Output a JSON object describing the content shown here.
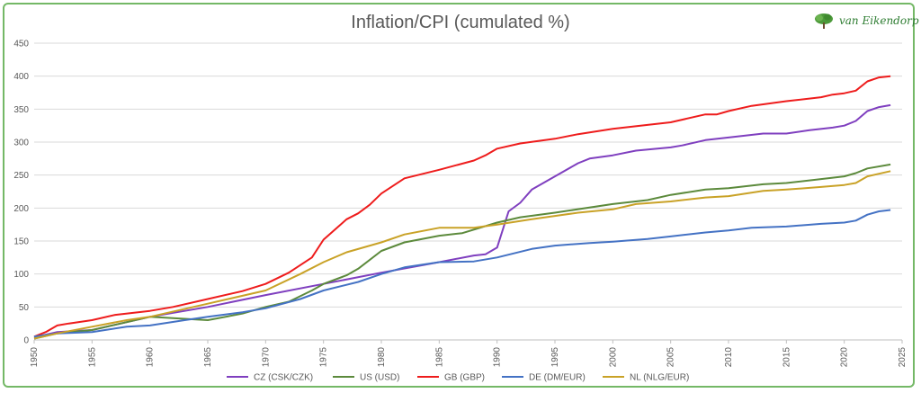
{
  "title": "Inflation/CPI (cumulated %)",
  "logo": {
    "text": "van Eikendorp",
    "icon": "tree-icon"
  },
  "chart_data": {
    "type": "line",
    "title": "Inflation/CPI (cumulated %)",
    "xlabel": "",
    "ylabel": "",
    "xlim": [
      1950,
      2025
    ],
    "ylim": [
      0,
      450
    ],
    "x_ticks": [
      1950,
      1955,
      1960,
      1965,
      1970,
      1975,
      1980,
      1985,
      1990,
      1995,
      2000,
      2005,
      2010,
      2015,
      2020,
      2025
    ],
    "y_ticks": [
      0,
      50,
      100,
      150,
      200,
      250,
      300,
      350,
      400,
      450
    ],
    "grid": "horizontal",
    "legend_position": "bottom",
    "series": [
      {
        "name": "CZ (CSK/CZK)",
        "color": "#7f3fbf",
        "points": [
          [
            1950,
            4
          ],
          [
            1952,
            12
          ],
          [
            1955,
            15
          ],
          [
            1960,
            35
          ],
          [
            1965,
            50
          ],
          [
            1970,
            68
          ],
          [
            1975,
            85
          ],
          [
            1980,
            102
          ],
          [
            1985,
            118
          ],
          [
            1988,
            128
          ],
          [
            1989,
            130
          ],
          [
            1990,
            140
          ],
          [
            1991,
            195
          ],
          [
            1992,
            208
          ],
          [
            1993,
            228
          ],
          [
            1995,
            248
          ],
          [
            1997,
            268
          ],
          [
            1998,
            275
          ],
          [
            2000,
            280
          ],
          [
            2002,
            287
          ],
          [
            2005,
            292
          ],
          [
            2006,
            295
          ],
          [
            2008,
            303
          ],
          [
            2010,
            307
          ],
          [
            2013,
            313
          ],
          [
            2015,
            313
          ],
          [
            2017,
            318
          ],
          [
            2019,
            322
          ],
          [
            2020,
            325
          ],
          [
            2021,
            332
          ],
          [
            2022,
            347
          ],
          [
            2023,
            353
          ],
          [
            2024,
            356
          ]
        ]
      },
      {
        "name": "US (USD)",
        "color": "#5c8a3c",
        "points": [
          [
            1950,
            2
          ],
          [
            1952,
            10
          ],
          [
            1955,
            15
          ],
          [
            1960,
            35
          ],
          [
            1965,
            30
          ],
          [
            1968,
            40
          ],
          [
            1970,
            50
          ],
          [
            1972,
            58
          ],
          [
            1974,
            75
          ],
          [
            1975,
            85
          ],
          [
            1977,
            98
          ],
          [
            1978,
            108
          ],
          [
            1980,
            135
          ],
          [
            1982,
            148
          ],
          [
            1985,
            158
          ],
          [
            1987,
            162
          ],
          [
            1990,
            178
          ],
          [
            1992,
            186
          ],
          [
            1995,
            193
          ],
          [
            2000,
            206
          ],
          [
            2003,
            212
          ],
          [
            2005,
            220
          ],
          [
            2008,
            228
          ],
          [
            2010,
            230
          ],
          [
            2013,
            236
          ],
          [
            2015,
            238
          ],
          [
            2018,
            244
          ],
          [
            2020,
            248
          ],
          [
            2021,
            253
          ],
          [
            2022,
            260
          ],
          [
            2024,
            266
          ]
        ]
      },
      {
        "name": "GB (GBP)",
        "color": "#ee1c1c",
        "points": [
          [
            1950,
            5
          ],
          [
            1951,
            12
          ],
          [
            1952,
            22
          ],
          [
            1953,
            25
          ],
          [
            1955,
            30
          ],
          [
            1957,
            38
          ],
          [
            1960,
            44
          ],
          [
            1962,
            50
          ],
          [
            1965,
            62
          ],
          [
            1968,
            74
          ],
          [
            1970,
            85
          ],
          [
            1972,
            102
          ],
          [
            1974,
            125
          ],
          [
            1975,
            152
          ],
          [
            1977,
            183
          ],
          [
            1978,
            192
          ],
          [
            1979,
            205
          ],
          [
            1980,
            222
          ],
          [
            1982,
            245
          ],
          [
            1985,
            258
          ],
          [
            1988,
            272
          ],
          [
            1989,
            280
          ],
          [
            1990,
            290
          ],
          [
            1992,
            298
          ],
          [
            1995,
            305
          ],
          [
            1997,
            312
          ],
          [
            2000,
            320
          ],
          [
            2003,
            326
          ],
          [
            2005,
            330
          ],
          [
            2008,
            342
          ],
          [
            2009,
            342
          ],
          [
            2010,
            347
          ],
          [
            2012,
            355
          ],
          [
            2015,
            362
          ],
          [
            2018,
            368
          ],
          [
            2019,
            372
          ],
          [
            2020,
            374
          ],
          [
            2021,
            378
          ],
          [
            2022,
            392
          ],
          [
            2023,
            398
          ],
          [
            2024,
            400
          ]
        ]
      },
      {
        "name": "DE (DM/EUR)",
        "color": "#4472c4",
        "points": [
          [
            1950,
            5
          ],
          [
            1952,
            10
          ],
          [
            1955,
            12
          ],
          [
            1958,
            20
          ],
          [
            1960,
            22
          ],
          [
            1963,
            30
          ],
          [
            1965,
            35
          ],
          [
            1968,
            42
          ],
          [
            1970,
            48
          ],
          [
            1973,
            62
          ],
          [
            1975,
            75
          ],
          [
            1978,
            88
          ],
          [
            1980,
            100
          ],
          [
            1982,
            110
          ],
          [
            1985,
            118
          ],
          [
            1988,
            119
          ],
          [
            1990,
            125
          ],
          [
            1993,
            138
          ],
          [
            1995,
            143
          ],
          [
            1998,
            147
          ],
          [
            2000,
            149
          ],
          [
            2003,
            153
          ],
          [
            2005,
            157
          ],
          [
            2008,
            163
          ],
          [
            2010,
            166
          ],
          [
            2012,
            170
          ],
          [
            2015,
            172
          ],
          [
            2018,
            176
          ],
          [
            2020,
            178
          ],
          [
            2021,
            181
          ],
          [
            2022,
            190
          ],
          [
            2023,
            195
          ],
          [
            2024,
            197
          ]
        ]
      },
      {
        "name": "NL (NLG/EUR)",
        "color": "#c9a227",
        "points": [
          [
            1950,
            2
          ],
          [
            1952,
            10
          ],
          [
            1955,
            20
          ],
          [
            1958,
            30
          ],
          [
            1960,
            35
          ],
          [
            1965,
            55
          ],
          [
            1970,
            75
          ],
          [
            1973,
            100
          ],
          [
            1975,
            118
          ],
          [
            1977,
            133
          ],
          [
            1980,
            148
          ],
          [
            1982,
            160
          ],
          [
            1985,
            170
          ],
          [
            1988,
            170
          ],
          [
            1990,
            175
          ],
          [
            1993,
            183
          ],
          [
            1995,
            188
          ],
          [
            1997,
            193
          ],
          [
            2000,
            198
          ],
          [
            2002,
            206
          ],
          [
            2005,
            210
          ],
          [
            2008,
            216
          ],
          [
            2010,
            218
          ],
          [
            2013,
            226
          ],
          [
            2015,
            228
          ],
          [
            2018,
            232
          ],
          [
            2020,
            235
          ],
          [
            2021,
            238
          ],
          [
            2022,
            248
          ],
          [
            2023,
            252
          ],
          [
            2024,
            256
          ]
        ]
      }
    ]
  }
}
